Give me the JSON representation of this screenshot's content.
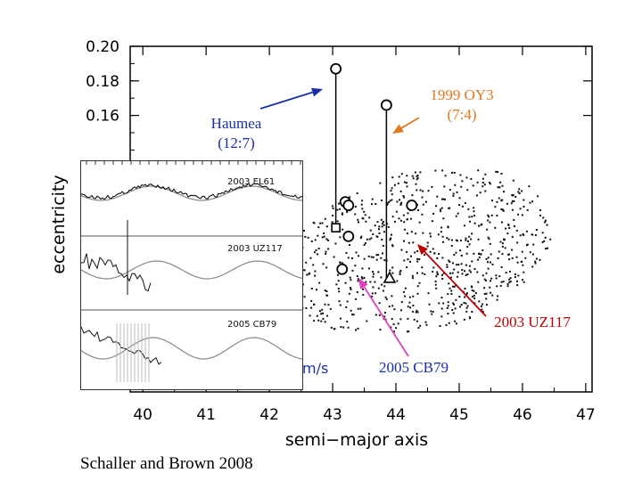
{
  "chart_data": {
    "type": "scatter",
    "title": "",
    "xlabel": "semi−major axis",
    "ylabel": "eccentricity",
    "xlim": [
      39.8,
      47.1
    ],
    "ylim": [
      0.0,
      0.2
    ],
    "x_ticks": [
      "40",
      "41",
      "42",
      "43",
      "44",
      "45",
      "46",
      "47"
    ],
    "y_ticks": [
      "0.20",
      "0.18",
      "0.16"
    ],
    "grid": false,
    "series": [
      {
        "marker": "circle",
        "points": [
          {
            "x": 43.05,
            "y": 0.187
          },
          {
            "x": 43.85,
            "y": 0.166
          },
          {
            "x": 43.2,
            "y": 0.11
          },
          {
            "x": 43.25,
            "y": 0.108
          },
          {
            "x": 44.25,
            "y": 0.108
          },
          {
            "x": 43.25,
            "y": 0.09
          },
          {
            "x": 43.15,
            "y": 0.071
          }
        ]
      },
      {
        "marker": "square",
        "points": [
          {
            "x": 43.05,
            "y": 0.095
          }
        ]
      },
      {
        "marker": "triangle",
        "points": [
          {
            "x": 43.9,
            "y": 0.066
          }
        ]
      }
    ],
    "vertical_lines": [
      {
        "x": 43.05,
        "y_from": 0.095,
        "y_to": 0.187
      },
      {
        "x": 43.85,
        "y_from": 0.066,
        "y_to": 0.166
      }
    ],
    "annotations": [
      {
        "text_lines": [
          "Haumea",
          "(12:7)"
        ],
        "color": "#1a2fa8"
      },
      {
        "text_lines": [
          "1999 OY3",
          "(7:4)"
        ],
        "color": "#e07820"
      },
      {
        "text_lines": [
          "2003 UZ117"
        ],
        "color": "#c00000"
      },
      {
        "text_lines": [
          "2005 CB79"
        ],
        "color": "#1a2fa8"
      }
    ]
  },
  "inset": {
    "panels": [
      {
        "label": "2003 EL61"
      },
      {
        "label": "2003 UZ117"
      },
      {
        "label": "2005 CB79"
      }
    ]
  },
  "velocity_fragment": "m/s",
  "credit": "Schaller and Brown 2008"
}
